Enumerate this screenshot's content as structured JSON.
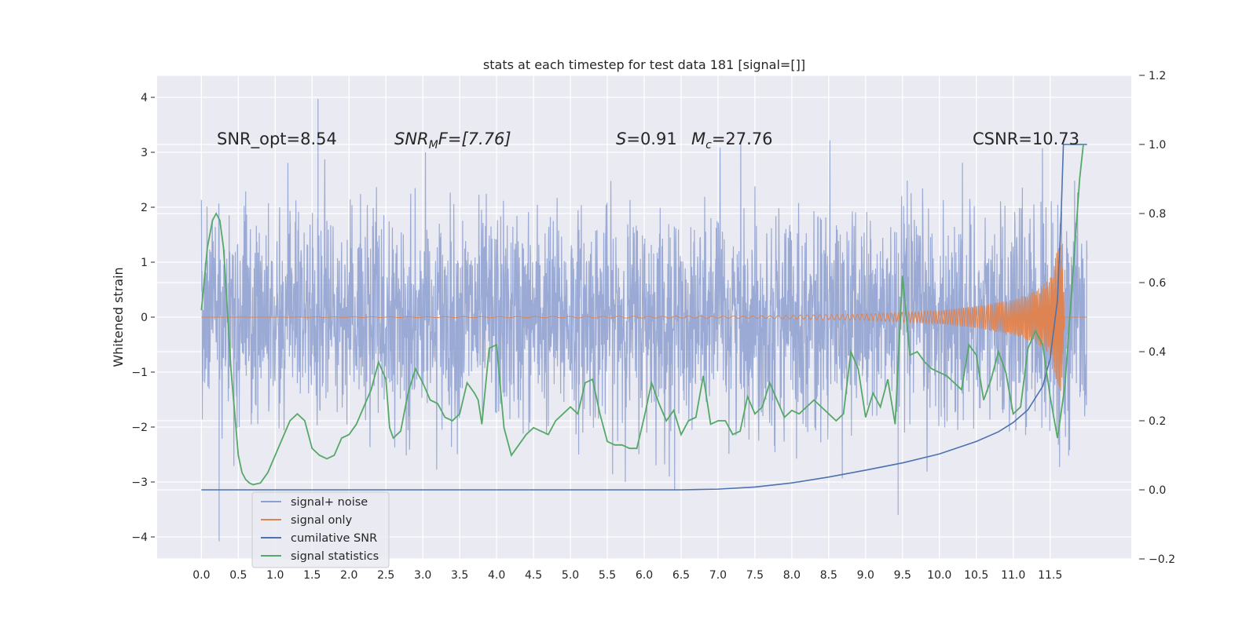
{
  "chart_data": {
    "type": "line",
    "title": "stats at each timestep for test data 181 [signal=[]]",
    "ylabel": "Whitened strain",
    "xlabel": "",
    "grid": true,
    "legend_placement": "lower-left",
    "xlim": [
      -0.6,
      12.6
    ],
    "ylim": [
      -4.4,
      4.4
    ],
    "y2lim": [
      -0.2,
      1.2
    ],
    "xticks": [
      "0.0",
      "0.5",
      "1.0",
      "1.5",
      "2.0",
      "2.5",
      "3.0",
      "3.5",
      "4.0",
      "4.5",
      "5.0",
      "5.5",
      "6.0",
      "6.5",
      "7.0",
      "7.5",
      "8.0",
      "8.5",
      "9.0",
      "9.5",
      "10.0",
      "10.5",
      "11.0",
      "11.5"
    ],
    "yticks": [
      "4",
      "3",
      "2",
      "1",
      "0",
      "−1",
      "−2",
      "−3",
      "−4"
    ],
    "y2ticks": [
      "1.2",
      "1.0",
      "0.8",
      "0.6",
      "0.4",
      "0.2",
      "0.0",
      "−0.2"
    ],
    "annotations": {
      "snr_opt": "SNR_opt=8.54",
      "snr_mf_main": "SNR",
      "snr_mf_sub": "M",
      "snr_mf_rest": "F=[7.76]",
      "s_label": "S",
      "s_value": "=0.91",
      "mc_label": "M",
      "mc_sub": "c",
      "mc_value": "=27.76",
      "csnr": "CSNR=10.73"
    },
    "series": [
      {
        "name": "signal+ noise",
        "axis": "left",
        "color": "#8c9fcf",
        "description_of_values": "dense noise between roughly -2.5 and 2.5 across x 0.0-12.0",
        "extremes": {
          "max": [
            1.58,
            3.97
          ],
          "min": [
            0.24,
            -4.08
          ],
          "max2": [
            9.44,
            -3.6
          ]
        }
      },
      {
        "name": "signal only",
        "axis": "left",
        "color": "#dd8452",
        "envelope": [
          [
            0.0,
            0.0
          ],
          [
            7.5,
            0.02
          ],
          [
            9.0,
            0.06
          ],
          [
            10.0,
            0.12
          ],
          [
            10.5,
            0.2
          ],
          [
            11.0,
            0.32
          ],
          [
            11.3,
            0.48
          ],
          [
            11.5,
            0.7
          ],
          [
            11.65,
            1.5
          ],
          [
            11.7,
            0.0
          ],
          [
            12.0,
            0.0
          ]
        ]
      },
      {
        "name": "cumilative SNR",
        "axis": "right",
        "color": "#4c72b0",
        "x": [
          0.0,
          6.5,
          7.0,
          7.5,
          8.0,
          8.5,
          9.0,
          9.5,
          10.0,
          10.5,
          10.8,
          11.0,
          11.2,
          11.4,
          11.5,
          11.6,
          11.65,
          11.68,
          11.7,
          12.0
        ],
        "values": [
          0.0,
          0.0,
          0.002,
          0.008,
          0.02,
          0.037,
          0.057,
          0.078,
          0.104,
          0.14,
          0.168,
          0.195,
          0.232,
          0.3,
          0.38,
          0.55,
          0.8,
          1.0,
          1.0,
          1.0
        ]
      },
      {
        "name": "signal statistics",
        "axis": "right",
        "color": "#55a868",
        "x": [
          0.0,
          0.08,
          0.15,
          0.2,
          0.25,
          0.3,
          0.4,
          0.5,
          0.55,
          0.6,
          0.65,
          0.7,
          0.8,
          0.9,
          1.0,
          1.1,
          1.2,
          1.3,
          1.4,
          1.5,
          1.6,
          1.7,
          1.8,
          1.9,
          2.0,
          2.1,
          2.2,
          2.3,
          2.4,
          2.5,
          2.55,
          2.6,
          2.7,
          2.8,
          2.9,
          3.0,
          3.1,
          3.2,
          3.3,
          3.4,
          3.5,
          3.6,
          3.7,
          3.75,
          3.8,
          3.9,
          4.0,
          4.1,
          4.2,
          4.3,
          4.4,
          4.5,
          4.6,
          4.7,
          4.8,
          4.9,
          5.0,
          5.1,
          5.2,
          5.3,
          5.4,
          5.5,
          5.6,
          5.7,
          5.8,
          5.9,
          6.0,
          6.1,
          6.2,
          6.3,
          6.4,
          6.5,
          6.6,
          6.7,
          6.8,
          6.9,
          7.0,
          7.1,
          7.2,
          7.3,
          7.4,
          7.5,
          7.6,
          7.7,
          7.8,
          7.9,
          8.0,
          8.1,
          8.2,
          8.3,
          8.4,
          8.5,
          8.6,
          8.7,
          8.8,
          8.9,
          9.0,
          9.1,
          9.2,
          9.3,
          9.4,
          9.5,
          9.6,
          9.7,
          9.8,
          9.9,
          10.0,
          10.1,
          10.2,
          10.3,
          10.4,
          10.5,
          10.6,
          10.7,
          10.8,
          10.9,
          11.0,
          11.1,
          11.2,
          11.3,
          11.4,
          11.5,
          11.6,
          11.7,
          11.8,
          11.9,
          11.95
        ],
        "values": [
          0.52,
          0.7,
          0.78,
          0.8,
          0.78,
          0.7,
          0.35,
          0.1,
          0.05,
          0.03,
          0.02,
          0.015,
          0.02,
          0.05,
          0.1,
          0.15,
          0.2,
          0.22,
          0.2,
          0.12,
          0.1,
          0.09,
          0.1,
          0.15,
          0.16,
          0.19,
          0.24,
          0.29,
          0.37,
          0.32,
          0.18,
          0.15,
          0.17,
          0.28,
          0.35,
          0.31,
          0.26,
          0.25,
          0.21,
          0.2,
          0.22,
          0.31,
          0.28,
          0.26,
          0.19,
          0.41,
          0.42,
          0.18,
          0.1,
          0.13,
          0.16,
          0.18,
          0.17,
          0.16,
          0.2,
          0.22,
          0.24,
          0.22,
          0.31,
          0.32,
          0.22,
          0.14,
          0.13,
          0.13,
          0.12,
          0.12,
          0.21,
          0.31,
          0.25,
          0.2,
          0.23,
          0.16,
          0.2,
          0.21,
          0.33,
          0.19,
          0.2,
          0.2,
          0.16,
          0.17,
          0.27,
          0.22,
          0.24,
          0.31,
          0.26,
          0.21,
          0.23,
          0.22,
          0.24,
          0.26,
          0.24,
          0.22,
          0.2,
          0.22,
          0.4,
          0.35,
          0.21,
          0.28,
          0.24,
          0.32,
          0.19,
          0.62,
          0.39,
          0.4,
          0.37,
          0.35,
          0.34,
          0.33,
          0.31,
          0.29,
          0.42,
          0.39,
          0.26,
          0.32,
          0.4,
          0.34,
          0.22,
          0.24,
          0.41,
          0.46,
          0.42,
          0.27,
          0.15,
          0.3,
          0.6,
          0.9,
          1.0
        ]
      }
    ]
  },
  "legend": {
    "items": [
      {
        "label": "signal+ noise",
        "color": "#8c9fcf"
      },
      {
        "label": "signal only",
        "color": "#dd8452"
      },
      {
        "label": "cumilative SNR",
        "color": "#4c72b0"
      },
      {
        "label": "signal statistics",
        "color": "#55a868"
      }
    ]
  }
}
